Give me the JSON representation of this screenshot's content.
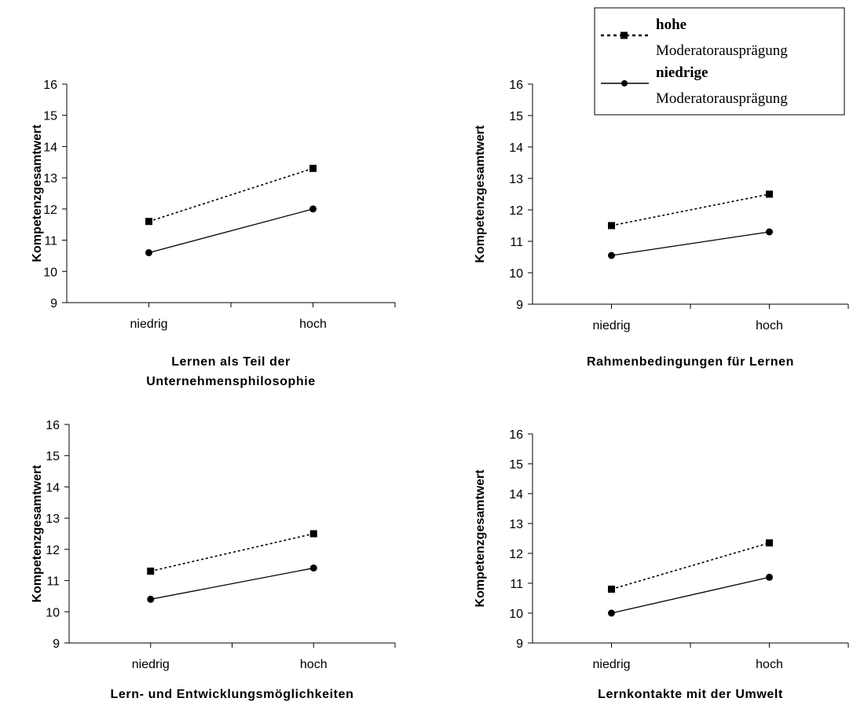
{
  "legend": {
    "position": "top-right",
    "entries": [
      {
        "name_bold": "hohe",
        "name_rest": "Moderatorausprägung",
        "style": "dotted",
        "marker": "square"
      },
      {
        "name_bold": "niedrige",
        "name_rest": "Moderatorausprägung",
        "style": "solid",
        "marker": "circle"
      }
    ]
  },
  "chart_data": [
    {
      "type": "line",
      "categories": [
        "niedrig",
        "hoch"
      ],
      "ylabel": "Kompetenzgesamtwert",
      "xlabel_lines": [
        "Lernen als Teil der",
        "Unternehmensphilosophie"
      ],
      "ylim": [
        9,
        16
      ],
      "yticks": [
        "9",
        "10",
        "11",
        "12",
        "13",
        "14",
        "15",
        "16"
      ],
      "series": [
        {
          "name": "hohe Moderatorausprägung",
          "values": [
            11.6,
            13.3
          ]
        },
        {
          "name": "niedrige Moderatorausprägung",
          "values": [
            10.6,
            12.0
          ]
        }
      ]
    },
    {
      "type": "line",
      "categories": [
        "niedrig",
        "hoch"
      ],
      "ylabel": "Kompetenzgesamtwert",
      "xlabel_lines": [
        "Rahmenbedingungen für Lernen"
      ],
      "ylim": [
        9,
        16
      ],
      "yticks": [
        "9",
        "10",
        "11",
        "12",
        "13",
        "14",
        "15",
        "16"
      ],
      "series": [
        {
          "name": "hohe Moderatorausprägung",
          "values": [
            11.5,
            12.5
          ]
        },
        {
          "name": "niedrige Moderatorausprägung",
          "values": [
            10.55,
            11.3
          ]
        }
      ]
    },
    {
      "type": "line",
      "categories": [
        "niedrig",
        "hoch"
      ],
      "ylabel": "Kompetenzgesamtwert",
      "xlabel_lines": [
        "Lern- und Entwicklungsmöglichkeiten"
      ],
      "ylim": [
        9,
        16
      ],
      "yticks": [
        "9",
        "10",
        "11",
        "12",
        "13",
        "14",
        "15",
        "16"
      ],
      "series": [
        {
          "name": "hohe Moderatorausprägung",
          "values": [
            11.3,
            12.5
          ]
        },
        {
          "name": "niedrige Moderatorausprägung",
          "values": [
            10.4,
            11.4
          ]
        }
      ]
    },
    {
      "type": "line",
      "categories": [
        "niedrig",
        "hoch"
      ],
      "ylabel": "Kompetenzgesamtwert",
      "xlabel_lines": [
        "Lernkontakte mit der Umwelt"
      ],
      "ylim": [
        9,
        16
      ],
      "yticks": [
        "9",
        "10",
        "11",
        "12",
        "13",
        "14",
        "15",
        "16"
      ],
      "series": [
        {
          "name": "hohe Moderatorausprägung",
          "values": [
            10.8,
            12.35
          ]
        },
        {
          "name": "niedrige Moderatorausprägung",
          "values": [
            10.0,
            11.2
          ]
        }
      ]
    }
  ]
}
